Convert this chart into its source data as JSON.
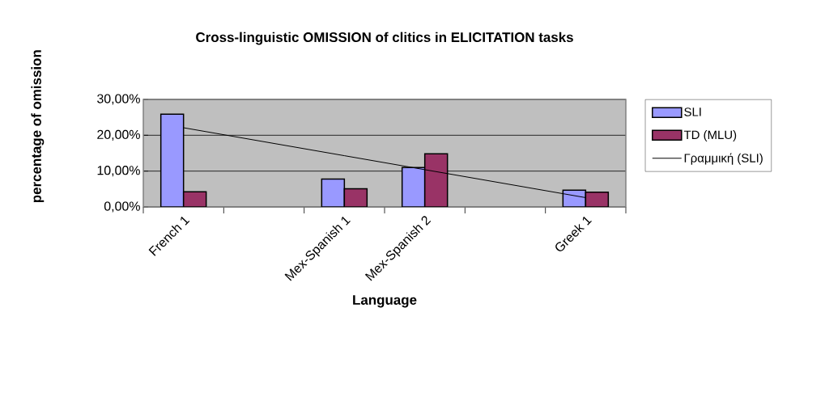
{
  "chart_data": {
    "type": "bar",
    "title": "Cross-linguistic OMISSION of clitics in ELICITATION tasks",
    "xlabel": "Language",
    "ylabel": "percentage of omission",
    "categories": [
      "French 1",
      null,
      "Mex-Spanish 1",
      "Mex-Spanish 2",
      null,
      "Greek 1"
    ],
    "series": [
      {
        "name": "SLI",
        "color": "#9999ff",
        "values": [
          25.9,
          null,
          7.8,
          11.0,
          null,
          4.7
        ]
      },
      {
        "name": "TD (MLU)",
        "color": "#993366",
        "values": [
          4.2,
          null,
          5.1,
          14.8,
          null,
          4.1
        ]
      },
      {
        "name": "Γραμμική (SLI)",
        "type": "line",
        "color": "#000000",
        "marker": "none",
        "values": [
          22.1,
          18.2,
          14.3,
          10.4,
          6.5,
          2.6
        ]
      }
    ],
    "ylim": [
      0,
      30
    ],
    "yticks": [
      {
        "value": 0,
        "label": "0,00%"
      },
      {
        "value": 10,
        "label": "10,00%"
      },
      {
        "value": 20,
        "label": "20,00%"
      },
      {
        "value": 30,
        "label": "30,00%"
      }
    ],
    "grid": "y",
    "legend": "right"
  }
}
